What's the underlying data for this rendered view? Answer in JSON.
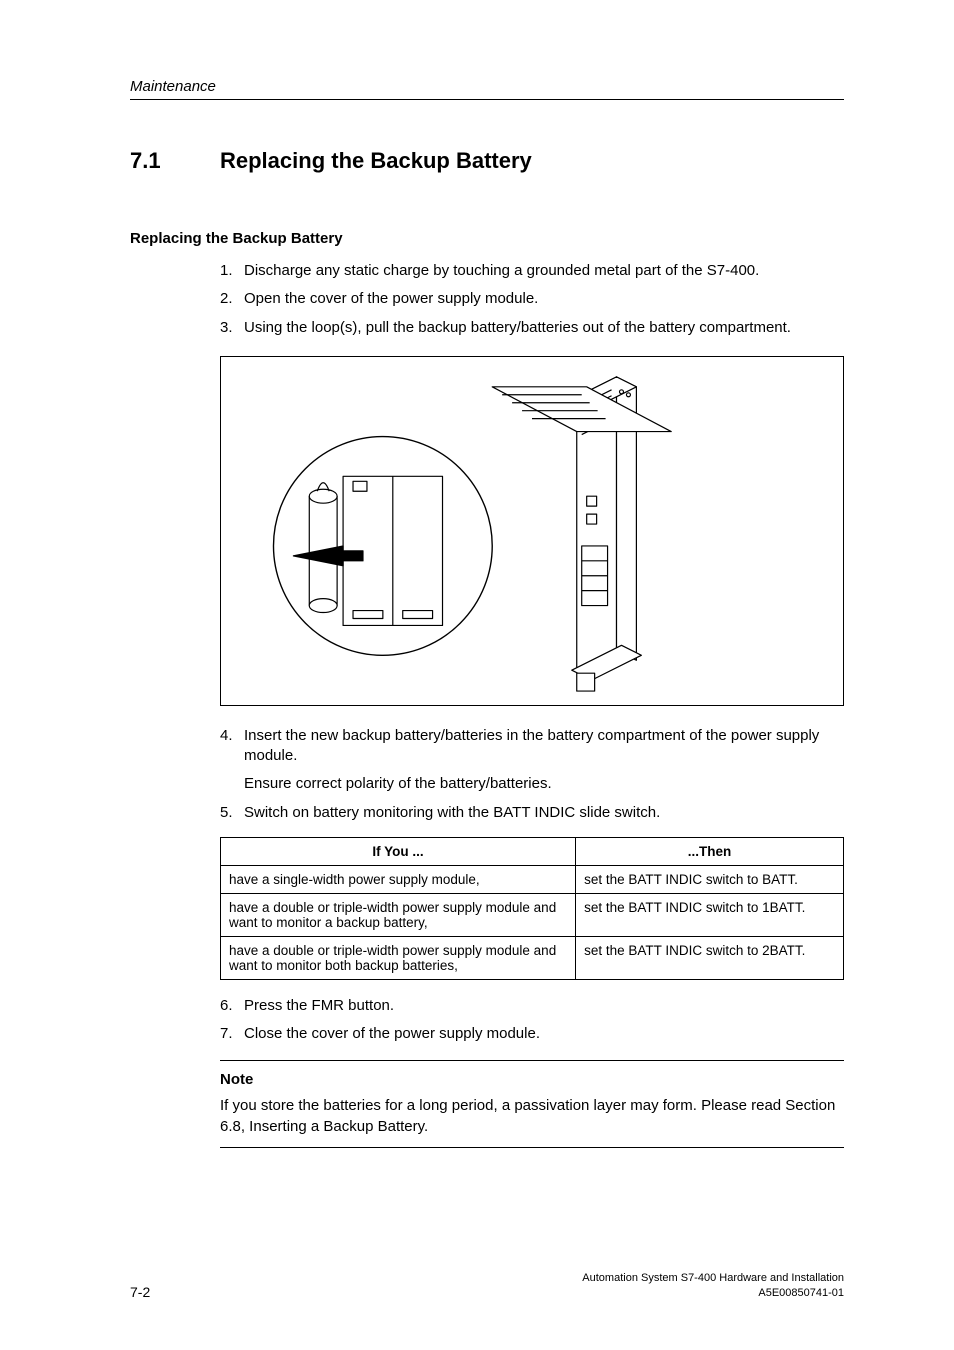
{
  "header": {
    "section": "Maintenance"
  },
  "h1": {
    "num": "7.1",
    "title": "Replacing the Backup Battery"
  },
  "h2": "Replacing the Backup Battery",
  "steps_a": [
    {
      "n": "1.",
      "t": "Discharge any static charge by touching a grounded metal part of the S7-400."
    },
    {
      "n": "2.",
      "t": "Open the cover of the power supply module."
    },
    {
      "n": "3.",
      "t": "Using the loop(s), pull the backup battery/batteries out of the battery compartment."
    }
  ],
  "steps_b": [
    {
      "n": "4.",
      "t": "Insert the new backup battery/batteries in the battery compartment of the power supply module."
    }
  ],
  "para_polarity": "Ensure correct polarity of the battery/batteries.",
  "steps_c": [
    {
      "n": "5.",
      "t": "Switch on battery monitoring with the BATT INDIC slide switch."
    }
  ],
  "table": {
    "col1_header": "If You ...",
    "col2_header": "...Then",
    "rows": [
      {
        "c1": "have a single-width power supply module,",
        "c2": "set the BATT INDIC switch to BATT."
      },
      {
        "c1": "have a double or triple-width power supply module and want to monitor a backup battery,",
        "c2": "set the BATT INDIC switch to 1BATT."
      },
      {
        "c1": "have a double or triple-width power supply module and want to monitor both backup batteries,",
        "c2": "set the BATT INDIC switch to 2BATT."
      }
    ],
    "col1_width": "57%",
    "col2_width": "43%"
  },
  "steps_d": [
    {
      "n": "6.",
      "t": "Press the FMR button."
    },
    {
      "n": "7.",
      "t": "Close the cover of the power supply module."
    }
  ],
  "note": {
    "title": "Note",
    "body": "If you store the batteries for a long period, a passivation layer may form. Please read Section 6.8, Inserting a Backup Battery."
  },
  "footer": {
    "line1": "Automation System S7-400  Hardware and Installation",
    "line2": "A5E00850741-01",
    "pagenum": "7-2"
  },
  "figure": {
    "stroke": "#000000",
    "fill": "#ffffff",
    "stroke_width": 1.2
  }
}
